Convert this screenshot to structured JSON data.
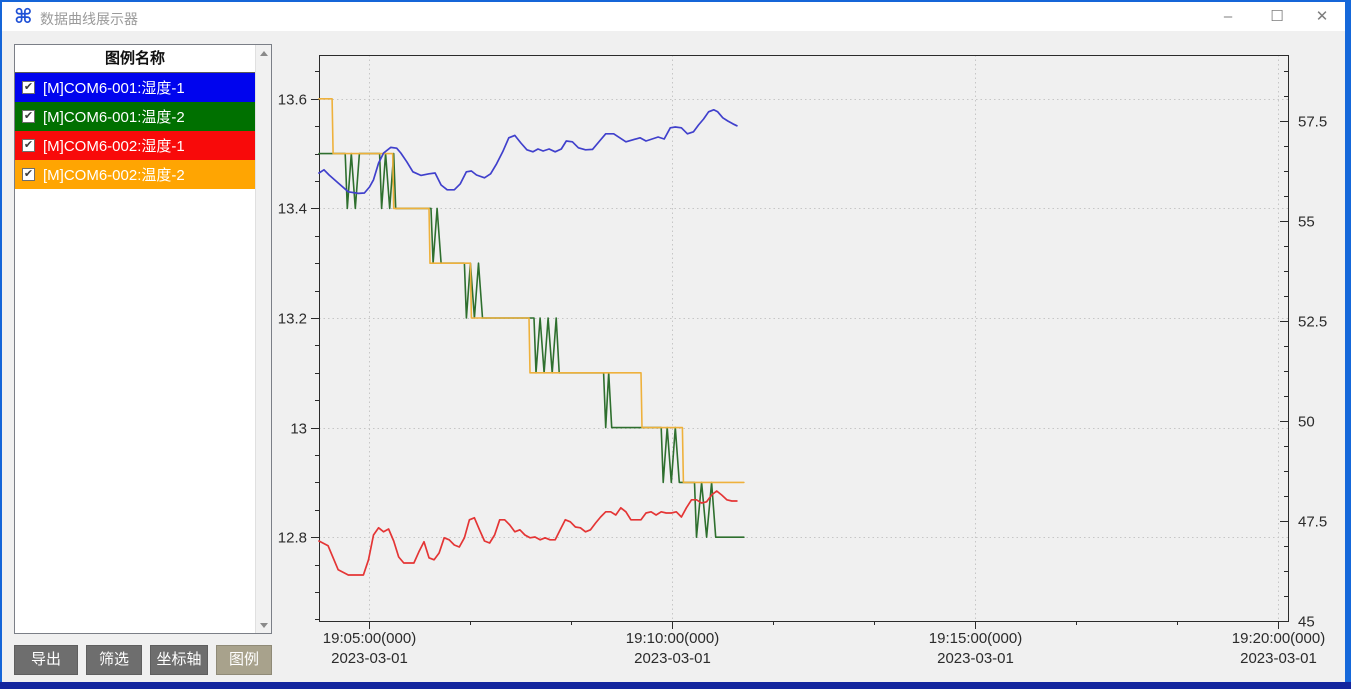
{
  "window": {
    "title": "数据曲线展示器",
    "icon": "⌘",
    "controls": {
      "minimize": "–",
      "maximize": "☐",
      "close": "✕"
    }
  },
  "legend_panel": {
    "header": "图例名称",
    "items": [
      {
        "label": "[M]COM6-001:湿度-1",
        "color": "#0004ee",
        "checked": true
      },
      {
        "label": "[M]COM6-001:温度-2",
        "color": "#007000",
        "checked": true
      },
      {
        "label": "[M]COM6-002:湿度-1",
        "color": "#f80a0a",
        "checked": true
      },
      {
        "label": "[M]COM6-002:温度-2",
        "color": "#ffa502",
        "checked": true
      }
    ],
    "checkmark": "✔"
  },
  "toolbar": {
    "buttons": [
      {
        "name": "export-button",
        "label": "导出",
        "active": false
      },
      {
        "name": "filter-button",
        "label": "筛选",
        "active": false
      },
      {
        "name": "axes-button",
        "label": "坐标轴",
        "active": false
      },
      {
        "name": "legend-button",
        "label": "图例",
        "active": true
      }
    ]
  },
  "chart_data": {
    "type": "line",
    "title": "",
    "grid": true,
    "x_axis": {
      "kind": "time",
      "domain_seconds_since_19h": [
        250,
        1210
      ],
      "major_tick_seconds": [
        300,
        600,
        900,
        1200
      ],
      "minor_tick_seconds": [
        400,
        500,
        700,
        800,
        1000,
        1100
      ],
      "tick_labels": [
        {
          "time": "19:05:00(000)",
          "date": "2023-03-01"
        },
        {
          "time": "19:10:00(000)",
          "date": "2023-03-01"
        },
        {
          "time": "19:15:00(000)",
          "date": "2023-03-01"
        },
        {
          "time": "19:20:00(000)",
          "date": "2023-03-01"
        }
      ]
    },
    "left_y_axis": {
      "range": [
        12.647,
        13.68
      ],
      "major_ticks": [
        12.8,
        13.0,
        13.2,
        13.4,
        13.6
      ],
      "major_tick_labels": [
        "12.8",
        "13",
        "13.2",
        "13.4",
        "13.6"
      ],
      "minor_step": 0.05
    },
    "right_y_axis": {
      "range": [
        45,
        59.15
      ],
      "major_ticks": [
        45,
        47.5,
        50,
        52.5,
        55,
        57.5
      ],
      "major_tick_labels": [
        "45",
        "47.5",
        "50",
        "52.5",
        "55",
        "57.5"
      ],
      "minor_step": 0.625
    },
    "series": [
      {
        "name": "[M]COM6-001:温度-2",
        "axis": "left",
        "color": "#2e6f2e",
        "width": 1.6,
        "points": [
          [
            250,
            13.5
          ],
          [
            276,
            13.5
          ],
          [
            278,
            13.4
          ],
          [
            282,
            13.5
          ],
          [
            286,
            13.4
          ],
          [
            290,
            13.5
          ],
          [
            310,
            13.5
          ],
          [
            312,
            13.4
          ],
          [
            316,
            13.5
          ],
          [
            320,
            13.4
          ],
          [
            324,
            13.5
          ],
          [
            326,
            13.4
          ],
          [
            361,
            13.4
          ],
          [
            363,
            13.3
          ],
          [
            367,
            13.4
          ],
          [
            371,
            13.3
          ],
          [
            394,
            13.3
          ],
          [
            396,
            13.2
          ],
          [
            400,
            13.3
          ],
          [
            404,
            13.2
          ],
          [
            408,
            13.3
          ],
          [
            412,
            13.2
          ],
          [
            463,
            13.2
          ],
          [
            465,
            13.1
          ],
          [
            469,
            13.2
          ],
          [
            473,
            13.1
          ],
          [
            477,
            13.2
          ],
          [
            481,
            13.1
          ],
          [
            485,
            13.2
          ],
          [
            488,
            13.1
          ],
          [
            532,
            13.1
          ],
          [
            534,
            13.0
          ],
          [
            537,
            13.1
          ],
          [
            540,
            13.0
          ],
          [
            589,
            13.0
          ],
          [
            591,
            12.9
          ],
          [
            595,
            13.0
          ],
          [
            599,
            12.9
          ],
          [
            603,
            13.0
          ],
          [
            607,
            12.9
          ],
          [
            622,
            12.9
          ],
          [
            624,
            12.8
          ],
          [
            629,
            12.9
          ],
          [
            634,
            12.8
          ],
          [
            639,
            12.9
          ],
          [
            643,
            12.8
          ],
          [
            671,
            12.8
          ]
        ]
      },
      {
        "name": "[M]COM6-002:温度-2",
        "axis": "left",
        "color": "#eeb13c",
        "width": 1.6,
        "points": [
          [
            250,
            13.6
          ],
          [
            263,
            13.6
          ],
          [
            264,
            13.5
          ],
          [
            323,
            13.5
          ],
          [
            324,
            13.4
          ],
          [
            359,
            13.4
          ],
          [
            360,
            13.3
          ],
          [
            400,
            13.3
          ],
          [
            401,
            13.2
          ],
          [
            458,
            13.2
          ],
          [
            459,
            13.1
          ],
          [
            569,
            13.1
          ],
          [
            570,
            13.0
          ],
          [
            610,
            13.0
          ],
          [
            611,
            12.9
          ],
          [
            671,
            12.9
          ]
        ]
      },
      {
        "name": "[M]COM6-002:湿度-1",
        "axis": "right",
        "color": "#e43535",
        "width": 1.7,
        "points": [
          [
            250,
            47.0
          ],
          [
            259,
            46.88
          ],
          [
            269,
            46.28
          ],
          [
            279,
            46.15
          ],
          [
            294,
            46.15
          ],
          [
            299,
            46.53
          ],
          [
            304,
            47.15
          ],
          [
            309,
            47.33
          ],
          [
            314,
            47.23
          ],
          [
            319,
            47.3
          ],
          [
            324,
            47.0
          ],
          [
            329,
            46.6
          ],
          [
            334,
            46.45
          ],
          [
            344,
            46.45
          ],
          [
            349,
            46.73
          ],
          [
            354,
            46.98
          ],
          [
            359,
            46.58
          ],
          [
            364,
            46.53
          ],
          [
            369,
            46.7
          ],
          [
            374,
            47.08
          ],
          [
            379,
            47.03
          ],
          [
            384,
            46.9
          ],
          [
            389,
            46.85
          ],
          [
            394,
            47.08
          ],
          [
            399,
            47.53
          ],
          [
            404,
            47.58
          ],
          [
            409,
            47.28
          ],
          [
            414,
            47.0
          ],
          [
            419,
            46.95
          ],
          [
            424,
            47.15
          ],
          [
            429,
            47.53
          ],
          [
            434,
            47.53
          ],
          [
            439,
            47.4
          ],
          [
            444,
            47.23
          ],
          [
            449,
            47.28
          ],
          [
            454,
            47.15
          ],
          [
            459,
            47.08
          ],
          [
            464,
            47.1
          ],
          [
            469,
            47.03
          ],
          [
            474,
            47.08
          ],
          [
            479,
            47.03
          ],
          [
            484,
            47.03
          ],
          [
            489,
            47.28
          ],
          [
            494,
            47.53
          ],
          [
            499,
            47.48
          ],
          [
            504,
            47.35
          ],
          [
            509,
            47.33
          ],
          [
            514,
            47.23
          ],
          [
            519,
            47.28
          ],
          [
            524,
            47.45
          ],
          [
            529,
            47.6
          ],
          [
            534,
            47.73
          ],
          [
            539,
            47.73
          ],
          [
            544,
            47.65
          ],
          [
            549,
            47.83
          ],
          [
            554,
            47.73
          ],
          [
            559,
            47.53
          ],
          [
            569,
            47.53
          ],
          [
            574,
            47.7
          ],
          [
            579,
            47.73
          ],
          [
            584,
            47.65
          ],
          [
            589,
            47.73
          ],
          [
            594,
            47.7
          ],
          [
            599,
            47.7
          ],
          [
            604,
            47.73
          ],
          [
            609,
            47.6
          ],
          [
            614,
            47.83
          ],
          [
            619,
            48.03
          ],
          [
            624,
            48.03
          ],
          [
            629,
            47.95
          ],
          [
            634,
            47.98
          ],
          [
            639,
            48.15
          ],
          [
            644,
            48.25
          ],
          [
            649,
            48.15
          ],
          [
            654,
            48.03
          ],
          [
            659,
            48.0
          ],
          [
            664,
            48.0
          ]
        ]
      },
      {
        "name": "[M]COM6-001:湿度-1",
        "axis": "right",
        "color": "#4040cc",
        "width": 1.7,
        "points": [
          [
            250,
            56.2
          ],
          [
            255,
            56.28
          ],
          [
            260,
            56.15
          ],
          [
            269,
            55.95
          ],
          [
            279,
            55.73
          ],
          [
            289,
            55.69
          ],
          [
            295,
            55.7
          ],
          [
            300,
            55.85
          ],
          [
            304,
            56.03
          ],
          [
            309,
            56.45
          ],
          [
            314,
            56.7
          ],
          [
            321,
            56.84
          ],
          [
            327,
            56.82
          ],
          [
            331,
            56.7
          ],
          [
            337,
            56.48
          ],
          [
            343,
            56.23
          ],
          [
            351,
            56.14
          ],
          [
            359,
            56.18
          ],
          [
            365,
            56.2
          ],
          [
            371,
            55.9
          ],
          [
            377,
            55.78
          ],
          [
            384,
            55.78
          ],
          [
            390,
            55.93
          ],
          [
            396,
            56.23
          ],
          [
            401,
            56.25
          ],
          [
            406,
            56.15
          ],
          [
            414,
            56.08
          ],
          [
            420,
            56.18
          ],
          [
            426,
            56.43
          ],
          [
            432,
            56.73
          ],
          [
            438,
            57.08
          ],
          [
            444,
            57.14
          ],
          [
            450,
            56.95
          ],
          [
            456,
            56.78
          ],
          [
            462,
            56.73
          ],
          [
            467,
            56.8
          ],
          [
            472,
            56.75
          ],
          [
            478,
            56.8
          ],
          [
            484,
            56.73
          ],
          [
            490,
            56.8
          ],
          [
            495,
            57.0
          ],
          [
            501,
            56.98
          ],
          [
            507,
            56.83
          ],
          [
            514,
            56.78
          ],
          [
            521,
            56.79
          ],
          [
            528,
            57.0
          ],
          [
            534,
            57.18
          ],
          [
            542,
            57.18
          ],
          [
            548,
            57.08
          ],
          [
            554,
            56.98
          ],
          [
            561,
            57.03
          ],
          [
            568,
            57.08
          ],
          [
            574,
            57.0
          ],
          [
            580,
            57.05
          ],
          [
            586,
            57.1
          ],
          [
            592,
            57.05
          ],
          [
            598,
            57.33
          ],
          [
            603,
            57.35
          ],
          [
            609,
            57.33
          ],
          [
            615,
            57.18
          ],
          [
            621,
            57.23
          ],
          [
            626,
            57.4
          ],
          [
            631,
            57.55
          ],
          [
            636,
            57.73
          ],
          [
            641,
            57.78
          ],
          [
            645,
            57.73
          ],
          [
            650,
            57.58
          ],
          [
            655,
            57.5
          ],
          [
            660,
            57.43
          ],
          [
            664,
            57.38
          ]
        ]
      }
    ]
  }
}
